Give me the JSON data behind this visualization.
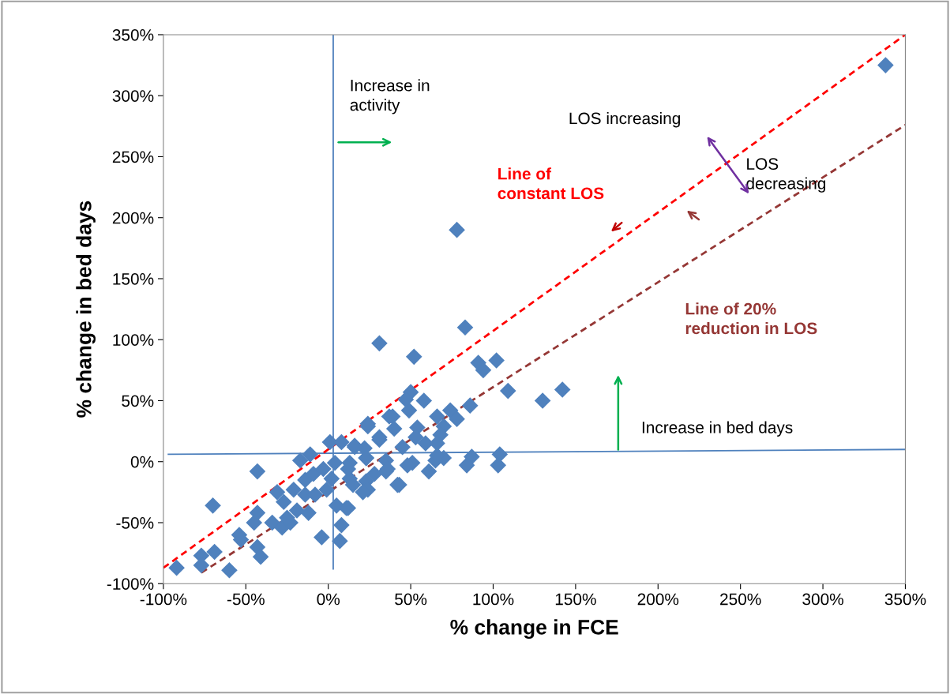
{
  "chart_data": {
    "type": "scatter",
    "xlabel": "% change in FCE",
    "ylabel": "% change in bed days",
    "xlim": [
      -100,
      350
    ],
    "ylim": [
      -100,
      350
    ],
    "xticks": [
      {
        "value": -100,
        "label": "-100%"
      },
      {
        "value": -50,
        "label": "-50%"
      },
      {
        "value": 0,
        "label": "0%"
      },
      {
        "value": 50,
        "label": "50%"
      },
      {
        "value": 100,
        "label": "100%"
      },
      {
        "value": 150,
        "label": "150%"
      },
      {
        "value": 200,
        "label": "200%"
      },
      {
        "value": 250,
        "label": "250%"
      },
      {
        "value": 300,
        "label": "300%"
      },
      {
        "value": 350,
        "label": "350%"
      }
    ],
    "yticks": [
      {
        "value": -100,
        "label": "-100%"
      },
      {
        "value": -50,
        "label": "-50%"
      },
      {
        "value": 0,
        "label": "0%"
      },
      {
        "value": 50,
        "label": "50%"
      },
      {
        "value": 100,
        "label": "100%"
      },
      {
        "value": 150,
        "label": "150%"
      },
      {
        "value": 200,
        "label": "200%"
      },
      {
        "value": 250,
        "label": "250%"
      },
      {
        "value": 300,
        "label": "300%"
      },
      {
        "value": 350,
        "label": "350%"
      }
    ],
    "grid": false,
    "annotations": [
      "Increase in\nactivity",
      "LOS increasing",
      "LOS\ndecreasing",
      "Line of\nconstant LOS",
      "Line of 20%\nreduction in LOS",
      "Increase in bed days"
    ],
    "series": [
      {
        "type": "line",
        "color": "#4f81bd",
        "line_style": "solid",
        "marker": "none",
        "x": [
          3,
          3
        ],
        "values": [
          -88,
          350
        ]
      },
      {
        "type": "line",
        "color": "#4f81bd",
        "line_style": "solid",
        "marker": "none",
        "x": [
          -97,
          350
        ],
        "values": [
          6,
          10
        ]
      },
      {
        "type": "line",
        "color": "#ff0000",
        "line_style": "dashed",
        "marker": "none",
        "x": [
          -100,
          350
        ],
        "values": [
          -87,
          350
        ]
      },
      {
        "type": "line",
        "color": "#953735",
        "line_style": "dashed",
        "marker": "none",
        "x": [
          -77,
          350
        ],
        "values": [
          -91,
          276
        ]
      },
      {
        "color": "#4f81bd",
        "marker": "diamond",
        "x": [
          338,
          78,
          31,
          52,
          83,
          91,
          94,
          102,
          109,
          130,
          142,
          50,
          58,
          86,
          87,
          84,
          104,
          103,
          70,
          65,
          61,
          43,
          74,
          78,
          66,
          70,
          68,
          54,
          49,
          47,
          39,
          24,
          40,
          31,
          16,
          22,
          45,
          59,
          66,
          51,
          23,
          35,
          35,
          13,
          13,
          23,
          24,
          11,
          48,
          66,
          53,
          -92,
          -77,
          -77,
          -69,
          -60,
          -70,
          -54,
          -53,
          -43,
          -41,
          -43,
          -43,
          -45,
          -34,
          -28,
          -23,
          -31,
          -27,
          -21,
          -17,
          -11,
          -14,
          -19,
          -12,
          -14,
          -8,
          -9,
          -3,
          -1,
          -4,
          1,
          8,
          4,
          2,
          5,
          12,
          8,
          7,
          12,
          15,
          21,
          16,
          24,
          31,
          37,
          36,
          42,
          28,
          23,
          -25
        ],
        "values": [
          325,
          190,
          97,
          86,
          110,
          81,
          75,
          83,
          58,
          50,
          59,
          57,
          50,
          46,
          4,
          -3,
          6,
          -3,
          3,
          1,
          -8,
          -19,
          42,
          35,
          37,
          29,
          22,
          28,
          42,
          51,
          37,
          31,
          27,
          18,
          13,
          11,
          12,
          15,
          15,
          -1,
          3,
          1,
          -8,
          -1,
          -14,
          -16,
          -23,
          -38,
          -3,
          5,
          20,
          -87,
          -77,
          -85,
          -74,
          -89,
          -36,
          -60,
          -64,
          -70,
          -78,
          -8,
          -42,
          -50,
          -50,
          -54,
          -50,
          -25,
          -33,
          -23,
          1,
          6,
          -15,
          -40,
          -42,
          -27,
          -27,
          -10,
          -6,
          -23,
          -62,
          16,
          16,
          -1,
          -14,
          -36,
          -38,
          -52,
          -65,
          -6,
          -19,
          -25,
          12,
          29,
          20,
          37,
          -6,
          -19,
          -10,
          3,
          -46
        ]
      }
    ]
  }
}
